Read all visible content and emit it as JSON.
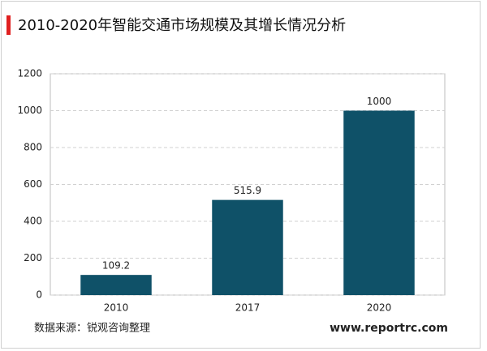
{
  "chart_data": {
    "type": "bar",
    "title": "2010-2020年智能交通市场规模及其增长情况分析",
    "categories": [
      "2010",
      "2017",
      "2020"
    ],
    "values": [
      109.2,
      515.9,
      1000
    ],
    "color": "#0f5168",
    "ylim": [
      0,
      1200
    ],
    "yticks": [
      0,
      200,
      400,
      600,
      800,
      1000,
      1200
    ],
    "grid": true,
    "source": "数据来源：锐观咨询整理",
    "website": "www.reportrc.com"
  }
}
